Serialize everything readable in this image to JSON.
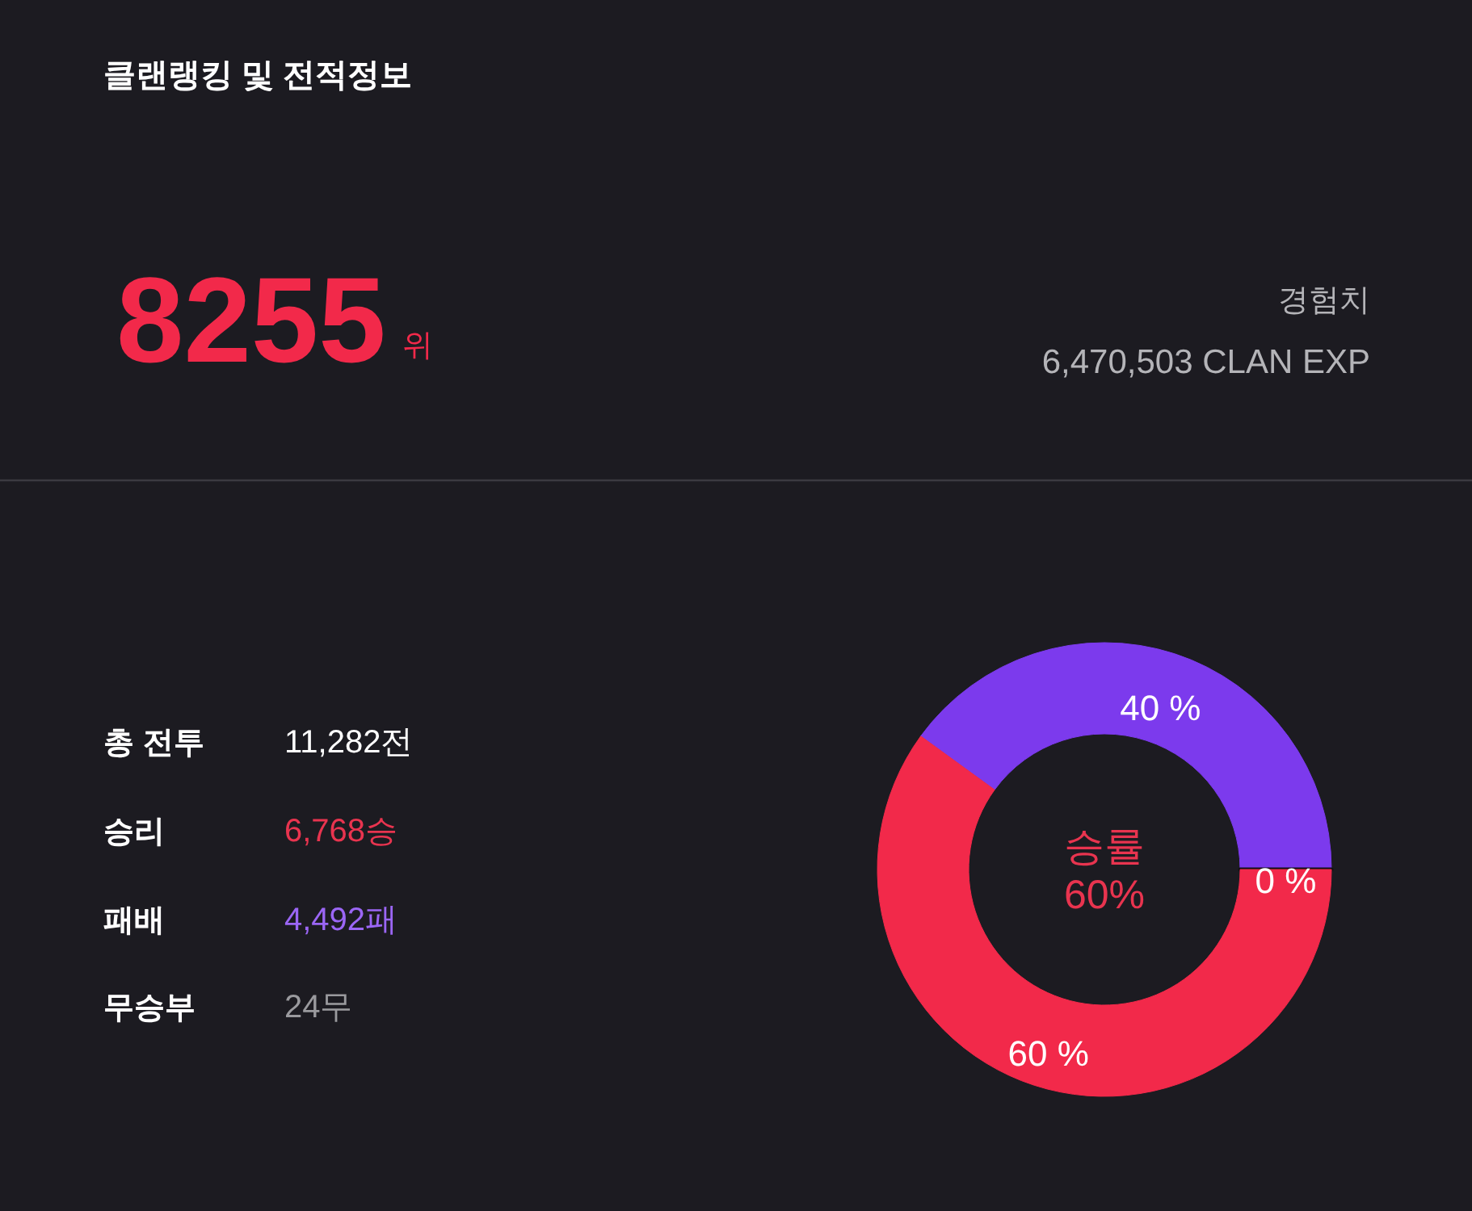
{
  "chart_data": [
    {
      "type": "other",
      "title": "클랜랭킹 및 전적정보",
      "annotations": [
        "8255",
        "위",
        "경험치",
        "6,470,503 CLAN EXP",
        "총 전투",
        "11,282전",
        "승리",
        "6,768승",
        "패배",
        "4,492패",
        "무승부",
        "24무"
      ]
    },
    {
      "type": "donut",
      "categories": [
        null,
        null,
        null
      ],
      "values": [
        40,
        0,
        60
      ],
      "colors": [
        "#7c3aed",
        "#111015",
        "#f2294a"
      ],
      "value_labels": [
        "40 %",
        "0 %",
        "60 %"
      ],
      "annotations": [
        "승률",
        "60%"
      ]
    }
  ]
}
